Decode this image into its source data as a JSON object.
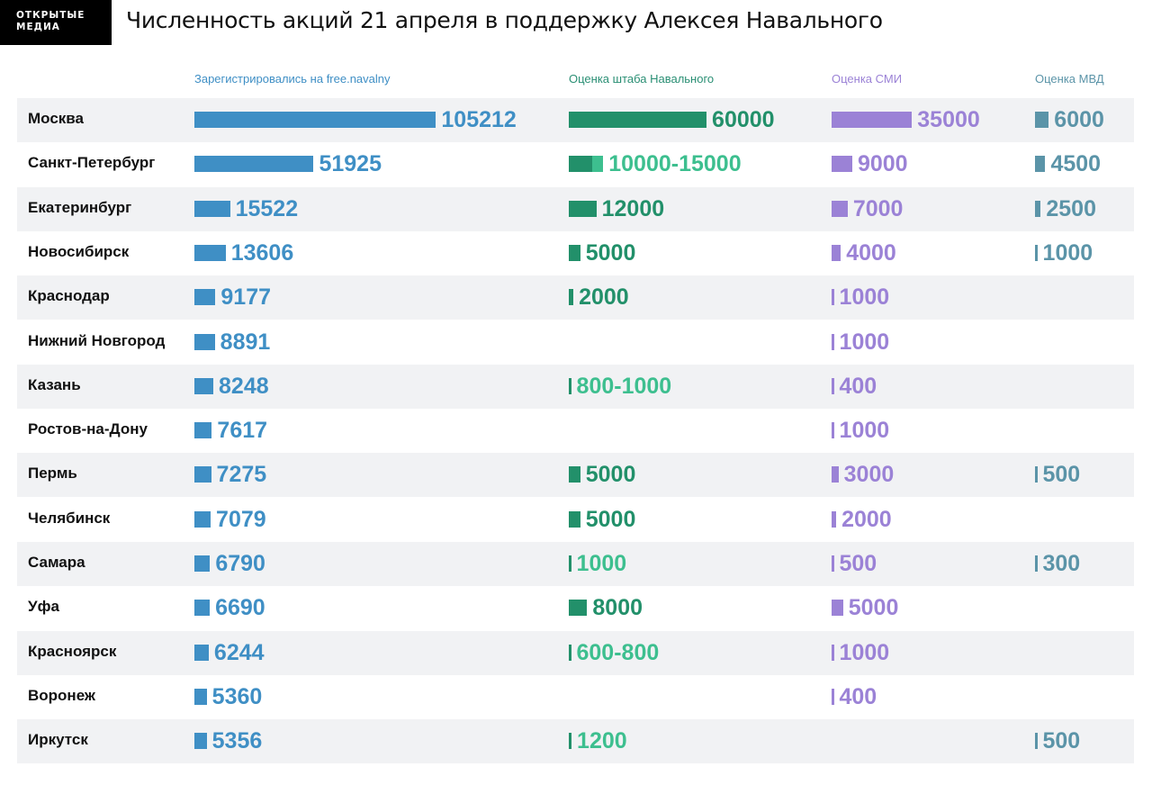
{
  "logo": {
    "line1": "ОТКРЫТЫЕ",
    "line2": "МЕДИА"
  },
  "title": "Численность акций 21 апреля в поддержку Алексея Навального",
  "colors": {
    "registered": "#3f8fc5",
    "hq": "#22906a",
    "hq_light": "#3dbf8f",
    "media": "#9b82d6",
    "mvd": "#5b94a8",
    "row_shade": "#f1f2f4"
  },
  "chart_data": {
    "type": "bar",
    "columns": [
      "Зарегистрировались на free.navalny",
      "Оценка штаба Навального",
      "Оценка СМИ",
      "Оценка МВД"
    ],
    "categories": [
      "Москва",
      "Санкт-Петербург",
      "Екатеринбург",
      "Новосибирск",
      "Краснодар",
      "Нижний Новгород",
      "Казань",
      "Ростов-на-Дону",
      "Пермь",
      "Челябинск",
      "Самара",
      "Уфа",
      "Красноярск",
      "Воронеж",
      "Иркутск"
    ],
    "series": [
      {
        "name": "Зарегистрировались на free.navalny",
        "values": [
          105212,
          51925,
          15522,
          13606,
          9177,
          8891,
          8248,
          7617,
          7275,
          7079,
          6790,
          6690,
          6244,
          5360,
          5356
        ],
        "labels": [
          "105212",
          "51925",
          "15522",
          "13606",
          "9177",
          "8891",
          "8248",
          "7617",
          "7275",
          "7079",
          "6790",
          "6690",
          "6244",
          "5360",
          "5356"
        ]
      },
      {
        "name": "Оценка штаба Навального",
        "ranges": [
          [
            60000,
            60000
          ],
          [
            10000,
            15000
          ],
          [
            12000,
            12000
          ],
          [
            5000,
            5000
          ],
          [
            2000,
            2000
          ],
          null,
          [
            800,
            1000
          ],
          null,
          [
            5000,
            5000
          ],
          [
            5000,
            5000
          ],
          [
            1000,
            1000
          ],
          [
            8000,
            8000
          ],
          [
            600,
            800
          ],
          null,
          [
            1200,
            1200
          ]
        ],
        "labels": [
          "60000",
          "10000-15000",
          "12000",
          "5000",
          "2000",
          "",
          "800-1000",
          "",
          "5000",
          "5000",
          "1000",
          "8000",
          "600-800",
          "",
          "1200"
        ]
      },
      {
        "name": "Оценка СМИ",
        "values": [
          35000,
          9000,
          7000,
          4000,
          1000,
          1000,
          400,
          1000,
          3000,
          2000,
          500,
          5000,
          1000,
          400,
          null
        ],
        "labels": [
          "35000",
          "9000",
          "7000",
          "4000",
          "1000",
          "1000",
          "400",
          "1000",
          "3000",
          "2000",
          "500",
          "5000",
          "1000",
          "400",
          ""
        ]
      },
      {
        "name": "Оценка МВД",
        "values": [
          6000,
          4500,
          2500,
          1000,
          null,
          null,
          null,
          null,
          500,
          null,
          300,
          null,
          null,
          null,
          500
        ],
        "labels": [
          "6000",
          "4500",
          "2500",
          "1000",
          "",
          "",
          "",
          "",
          "500",
          "",
          "300",
          "",
          "",
          "",
          "500"
        ]
      }
    ]
  }
}
